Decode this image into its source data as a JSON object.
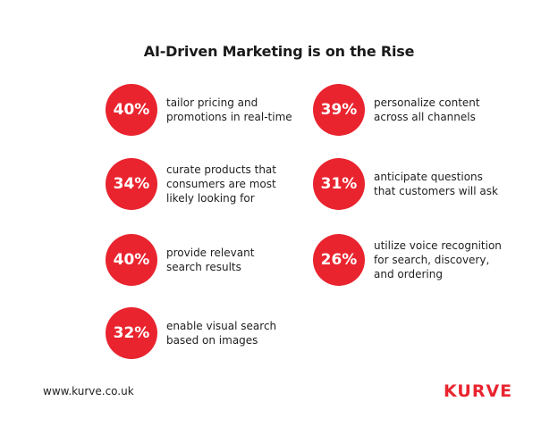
{
  "title": "AI-Driven Marketing is on the Rise",
  "stats": [
    {
      "percent": "40%",
      "text": "tailor pricing and\npromotions in real-time"
    },
    {
      "percent": "39%",
      "text": "personalize content\nacross all channels"
    },
    {
      "percent": "34%",
      "text": "curate products that\nconsumers are most\nlikely looking for"
    },
    {
      "percent": "31%",
      "text": "anticipate questions\nthat customers will ask"
    },
    {
      "percent": "40%",
      "text": "provide relevant\nsearch results"
    },
    {
      "percent": "26%",
      "text": "utilize voice recognition\nfor search, discovery,\nand ordering"
    },
    {
      "percent": "32%",
      "text": "enable visual search\nbased on images"
    }
  ],
  "footer": {
    "url": "www.kurve.co.uk",
    "logo": "KURVE"
  },
  "colors": {
    "accent": "#e9242f",
    "text": "#1f1f1f",
    "background": "#ffffff"
  }
}
